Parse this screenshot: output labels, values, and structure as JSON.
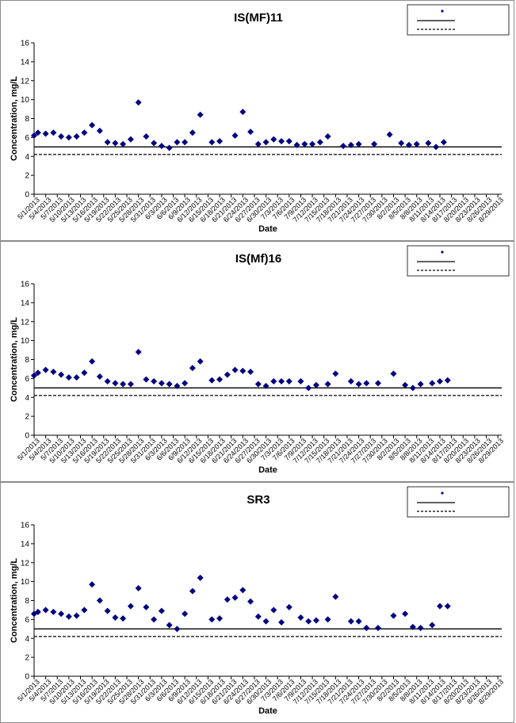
{
  "chart_data": [
    {
      "type": "scatter",
      "title": "IS(MF)11",
      "xlabel": "Date",
      "ylabel": "Concentration, mg/L",
      "ylim": [
        0,
        16
      ],
      "yticks": [
        0,
        2,
        4,
        6,
        8,
        10,
        12,
        14,
        16
      ],
      "xlim": [
        "5/1/2013",
        "8/30/2013"
      ],
      "xticks": [
        "5/1/2013",
        "5/4/2013",
        "5/7/2013",
        "5/10/2013",
        "5/13/2013",
        "5/16/2013",
        "5/19/2013",
        "5/22/2013",
        "5/25/2013",
        "5/28/2013",
        "5/31/2013",
        "6/3/2013",
        "6/6/2013",
        "6/9/2013",
        "6/12/2013",
        "6/15/2013",
        "6/18/2013",
        "6/21/2013",
        "6/24/2013",
        "6/27/2013",
        "6/30/2013",
        "7/3/2013",
        "7/6/2013",
        "7/9/2013",
        "7/12/2013",
        "7/15/2013",
        "7/18/2013",
        "7/21/2013",
        "7/24/2013",
        "7/27/2013",
        "7/30/2013",
        "8/2/2013",
        "8/5/2013",
        "8/8/2013",
        "8/11/2013",
        "8/14/2013",
        "8/17/2013",
        "8/20/2013",
        "8/23/2013",
        "8/26/2013",
        "8/29/2013"
      ],
      "legend_position": "top-right",
      "legend": [
        "",
        "",
        ""
      ],
      "points": [
        [
          "5/1/2013",
          6.2
        ],
        [
          "5/2/2013",
          6.5
        ],
        [
          "5/4/2013",
          6.4
        ],
        [
          "5/6/2013",
          6.5
        ],
        [
          "5/8/2013",
          6.1
        ],
        [
          "5/10/2013",
          6.0
        ],
        [
          "5/12/2013",
          6.1
        ],
        [
          "5/14/2013",
          6.5
        ],
        [
          "5/16/2013",
          7.3
        ],
        [
          "5/18/2013",
          6.7
        ],
        [
          "5/20/2013",
          5.5
        ],
        [
          "5/22/2013",
          5.4
        ],
        [
          "5/24/2013",
          5.3
        ],
        [
          "5/26/2013",
          5.8
        ],
        [
          "5/28/2013",
          9.7
        ],
        [
          "5/30/2013",
          6.1
        ],
        [
          "6/1/2013",
          5.4
        ],
        [
          "6/3/2013",
          5.1
        ],
        [
          "6/5/2013",
          4.9
        ],
        [
          "6/7/2013",
          5.5
        ],
        [
          "6/9/2013",
          5.5
        ],
        [
          "6/11/2013",
          6.5
        ],
        [
          "6/13/2013",
          8.4
        ],
        [
          "6/16/2013",
          5.5
        ],
        [
          "6/18/2013",
          5.6
        ],
        [
          "6/22/2013",
          6.2
        ],
        [
          "6/24/2013",
          8.7
        ],
        [
          "6/26/2013",
          6.6
        ],
        [
          "6/28/2013",
          5.3
        ],
        [
          "6/30/2013",
          5.5
        ],
        [
          "7/2/2013",
          5.8
        ],
        [
          "7/4/2013",
          5.6
        ],
        [
          "7/6/2013",
          5.6
        ],
        [
          "7/8/2013",
          5.2
        ],
        [
          "7/10/2013",
          5.3
        ],
        [
          "7/12/2013",
          5.3
        ],
        [
          "7/14/2013",
          5.5
        ],
        [
          "7/16/2013",
          6.1
        ],
        [
          "7/20/2013",
          5.1
        ],
        [
          "7/22/2013",
          5.2
        ],
        [
          "7/24/2013",
          5.3
        ],
        [
          "7/28/2013",
          5.3
        ],
        [
          "8/1/2013",
          6.3
        ],
        [
          "8/4/2013",
          5.4
        ],
        [
          "8/6/2013",
          5.2
        ],
        [
          "8/8/2013",
          5.3
        ],
        [
          "8/11/2013",
          5.4
        ],
        [
          "8/13/2013",
          5.0
        ],
        [
          "8/15/2013",
          5.5
        ]
      ],
      "hlines": [
        5.0,
        4.2
      ]
    },
    {
      "type": "scatter",
      "title": "IS(Mf)16",
      "xlabel": "Date",
      "ylabel": "Concentration, mg/L",
      "ylim": [
        0,
        16
      ],
      "yticks": [
        0,
        2,
        4,
        6,
        8,
        10,
        12,
        14,
        16
      ],
      "xlim": [
        "5/1/2013",
        "8/30/2013"
      ],
      "xticks": [
        "5/1/2013",
        "5/4/2013",
        "5/7/2013",
        "5/10/2013",
        "5/13/2013",
        "5/16/2013",
        "5/19/2013",
        "5/22/2013",
        "5/25/2013",
        "5/28/2013",
        "5/31/2013",
        "6/3/2013",
        "6/6/2013",
        "6/9/2013",
        "6/12/2013",
        "6/15/2013",
        "6/18/2013",
        "6/21/2013",
        "6/24/2013",
        "6/27/2013",
        "6/30/2013",
        "7/3/2013",
        "7/6/2013",
        "7/9/2013",
        "7/12/2013",
        "7/15/2013",
        "7/18/2013",
        "7/21/2013",
        "7/24/2013",
        "7/27/2013",
        "7/30/2013",
        "8/2/2013",
        "8/5/2013",
        "8/8/2013",
        "8/11/2013",
        "8/14/2013",
        "8/17/2013",
        "8/20/2013",
        "8/23/2013",
        "8/26/2013",
        "8/29/2013"
      ],
      "legend_position": "top-right",
      "legend": [
        "",
        "",
        ""
      ],
      "points": [
        [
          "5/1/2013",
          6.3
        ],
        [
          "5/2/2013",
          6.6
        ],
        [
          "5/4/2013",
          6.9
        ],
        [
          "5/6/2013",
          6.7
        ],
        [
          "5/8/2013",
          6.4
        ],
        [
          "5/10/2013",
          6.1
        ],
        [
          "5/12/2013",
          6.1
        ],
        [
          "5/14/2013",
          6.6
        ],
        [
          "5/16/2013",
          7.8
        ],
        [
          "5/18/2013",
          6.2
        ],
        [
          "5/20/2013",
          5.7
        ],
        [
          "5/22/2013",
          5.5
        ],
        [
          "5/24/2013",
          5.4
        ],
        [
          "5/26/2013",
          5.4
        ],
        [
          "5/28/2013",
          8.8
        ],
        [
          "5/30/2013",
          5.9
        ],
        [
          "6/1/2013",
          5.7
        ],
        [
          "6/3/2013",
          5.5
        ],
        [
          "6/5/2013",
          5.4
        ],
        [
          "6/7/2013",
          5.2
        ],
        [
          "6/9/2013",
          5.5
        ],
        [
          "6/11/2013",
          7.1
        ],
        [
          "6/13/2013",
          7.8
        ],
        [
          "6/16/2013",
          5.8
        ],
        [
          "6/18/2013",
          5.9
        ],
        [
          "6/20/2013",
          6.4
        ],
        [
          "6/22/2013",
          6.9
        ],
        [
          "6/24/2013",
          6.8
        ],
        [
          "6/26/2013",
          6.7
        ],
        [
          "6/28/2013",
          5.4
        ],
        [
          "6/30/2013",
          5.2
        ],
        [
          "7/2/2013",
          5.7
        ],
        [
          "7/4/2013",
          5.7
        ],
        [
          "7/6/2013",
          5.7
        ],
        [
          "7/9/2013",
          5.7
        ],
        [
          "7/11/2013",
          5.0
        ],
        [
          "7/13/2013",
          5.3
        ],
        [
          "7/16/2013",
          5.4
        ],
        [
          "7/18/2013",
          6.5
        ],
        [
          "7/22/2013",
          5.7
        ],
        [
          "7/24/2013",
          5.4
        ],
        [
          "7/26/2013",
          5.5
        ],
        [
          "7/29/2013",
          5.5
        ],
        [
          "8/2/2013",
          6.5
        ],
        [
          "8/5/2013",
          5.3
        ],
        [
          "8/7/2013",
          5.0
        ],
        [
          "8/9/2013",
          5.4
        ],
        [
          "8/12/2013",
          5.5
        ],
        [
          "8/14/2013",
          5.7
        ],
        [
          "8/16/2013",
          5.8
        ]
      ],
      "hlines": [
        5.0,
        4.2
      ]
    },
    {
      "type": "scatter",
      "title": "SR3",
      "xlabel": "Date",
      "ylabel": "Concentration, mg/L",
      "ylim": [
        0,
        16
      ],
      "yticks": [
        0,
        2,
        4,
        6,
        8,
        10,
        12,
        14,
        16
      ],
      "xlim": [
        "5/1/2013",
        "8/30/2013"
      ],
      "xticks": [
        "5/1/2013",
        "5/4/2013",
        "5/7/2013",
        "5/10/2013",
        "5/13/2013",
        "5/16/2013",
        "5/19/2013",
        "5/22/2013",
        "5/25/2013",
        "5/28/2013",
        "5/31/2013",
        "6/3/2013",
        "6/6/2013",
        "6/9/2013",
        "6/12/2013",
        "6/15/2013",
        "6/18/2013",
        "6/21/2013",
        "6/24/2013",
        "6/27/2013",
        "6/30/2013",
        "7/3/2013",
        "7/6/2013",
        "7/9/2013",
        "7/12/2013",
        "7/15/2013",
        "7/18/2013",
        "7/21/2013",
        "7/24/2013",
        "7/27/2013",
        "7/30/2013",
        "8/2/2013",
        "8/5/2013",
        "8/8/2013",
        "8/11/2013",
        "8/14/2013",
        "8/17/2013",
        "8/20/2013",
        "8/23/2013",
        "8/26/2013",
        "8/29/2013"
      ],
      "legend_position": "top-right",
      "legend": [
        "",
        "",
        ""
      ],
      "points": [
        [
          "5/1/2013",
          6.6
        ],
        [
          "5/2/2013",
          6.8
        ],
        [
          "5/4/2013",
          7.0
        ],
        [
          "5/6/2013",
          6.8
        ],
        [
          "5/8/2013",
          6.6
        ],
        [
          "5/10/2013",
          6.3
        ],
        [
          "5/12/2013",
          6.4
        ],
        [
          "5/14/2013",
          7.0
        ],
        [
          "5/16/2013",
          9.7
        ],
        [
          "5/18/2013",
          8.0
        ],
        [
          "5/20/2013",
          6.9
        ],
        [
          "5/22/2013",
          6.2
        ],
        [
          "5/24/2013",
          6.1
        ],
        [
          "5/26/2013",
          7.4
        ],
        [
          "5/28/2013",
          9.3
        ],
        [
          "5/30/2013",
          7.3
        ],
        [
          "6/1/2013",
          6.0
        ],
        [
          "6/3/2013",
          6.9
        ],
        [
          "6/5/2013",
          5.4
        ],
        [
          "6/7/2013",
          5.0
        ],
        [
          "6/9/2013",
          6.6
        ],
        [
          "6/11/2013",
          9.0
        ],
        [
          "6/13/2013",
          10.4
        ],
        [
          "6/16/2013",
          6.0
        ],
        [
          "6/18/2013",
          6.1
        ],
        [
          "6/20/2013",
          8.1
        ],
        [
          "6/22/2013",
          8.3
        ],
        [
          "6/24/2013",
          9.1
        ],
        [
          "6/26/2013",
          7.9
        ],
        [
          "6/28/2013",
          6.3
        ],
        [
          "6/30/2013",
          5.8
        ],
        [
          "7/2/2013",
          7.0
        ],
        [
          "7/4/2013",
          5.7
        ],
        [
          "7/6/2013",
          7.3
        ],
        [
          "7/9/2013",
          6.2
        ],
        [
          "7/11/2013",
          5.8
        ],
        [
          "7/13/2013",
          5.9
        ],
        [
          "7/16/2013",
          6.0
        ],
        [
          "7/18/2013",
          8.4
        ],
        [
          "7/22/2013",
          5.8
        ],
        [
          "7/24/2013",
          5.8
        ],
        [
          "7/26/2013",
          5.1
        ],
        [
          "7/29/2013",
          5.1
        ],
        [
          "8/2/2013",
          6.4
        ],
        [
          "8/5/2013",
          6.6
        ],
        [
          "8/7/2013",
          5.2
        ],
        [
          "8/9/2013",
          5.1
        ],
        [
          "8/12/2013",
          5.4
        ],
        [
          "8/14/2013",
          7.4
        ],
        [
          "8/16/2013",
          7.4
        ]
      ],
      "hlines": [
        5.0,
        4.2
      ]
    }
  ],
  "colors": {
    "marker": "#000080",
    "target_line": "#000000",
    "limit_line": "#000000",
    "panel_border": "#8c8c8c"
  }
}
